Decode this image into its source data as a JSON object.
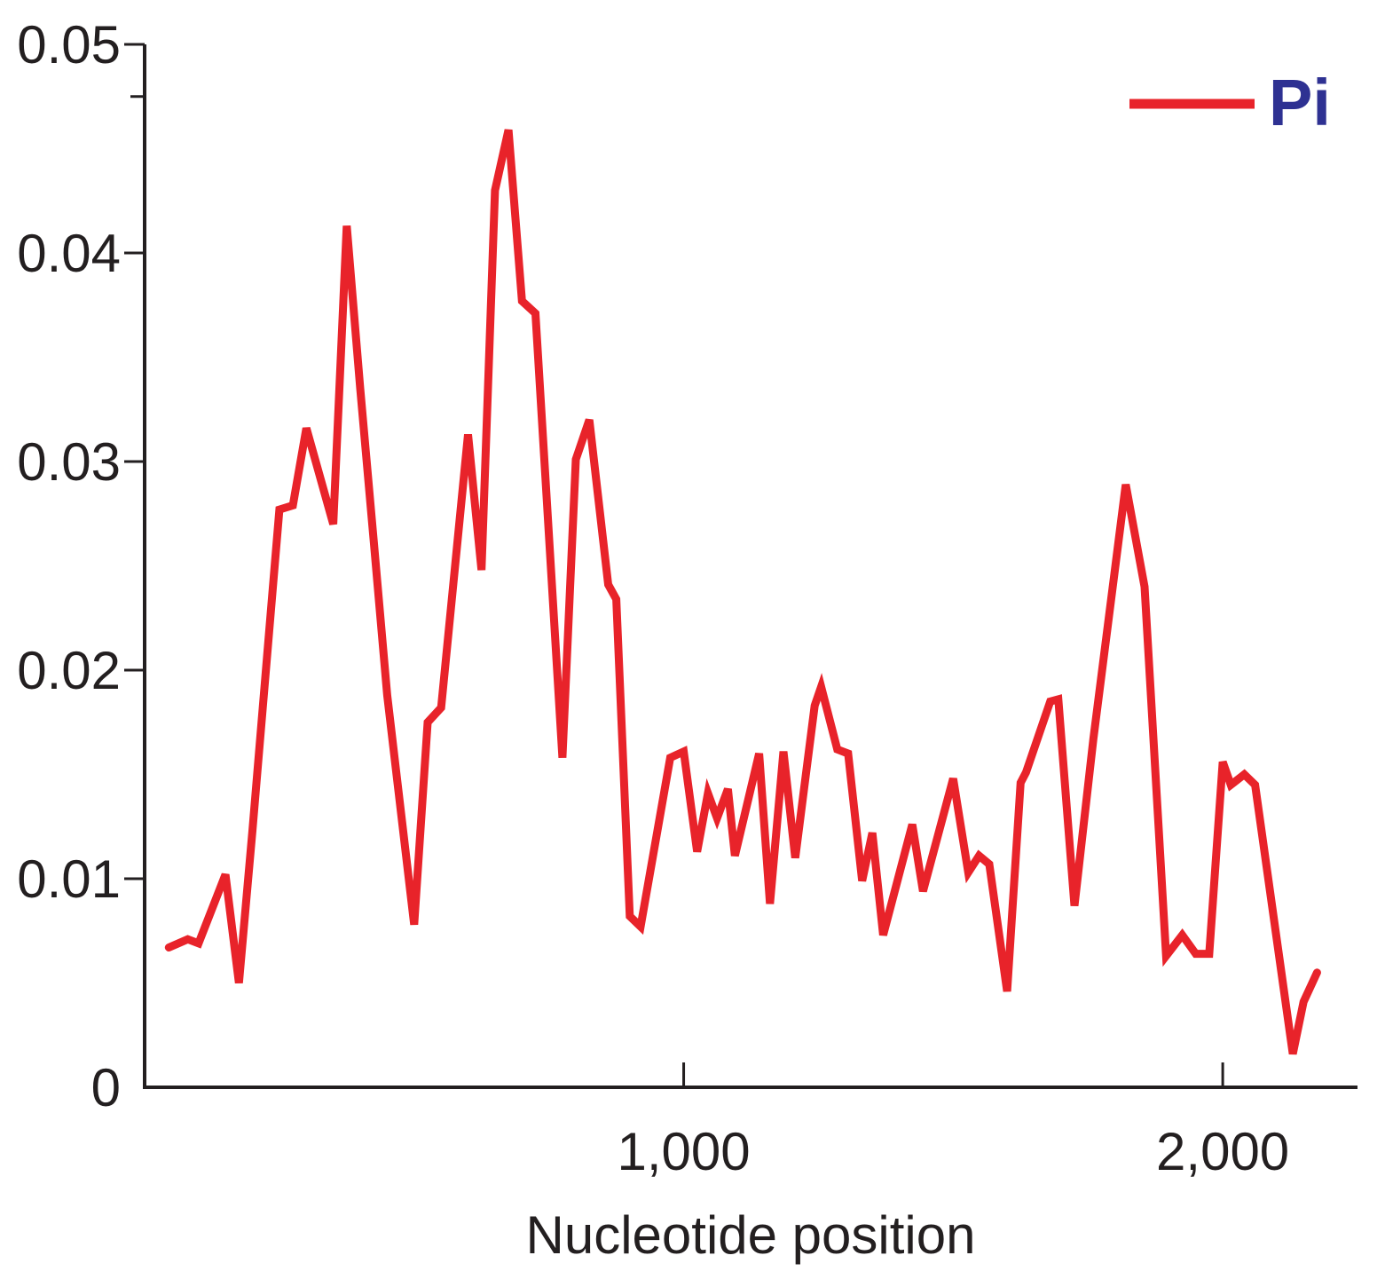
{
  "figure": {
    "background_color": "#ffffff",
    "axis_color": "#231f20",
    "text_color": "#231f20"
  },
  "chart_data": {
    "type": "line",
    "title": "",
    "xlabel": "Nucleotide position",
    "ylabel": "",
    "xlim": [
      0,
      2250
    ],
    "ylim": [
      0,
      0.05
    ],
    "grid": false,
    "x_ticks": [
      {
        "value": 1000,
        "label": "1,000"
      },
      {
        "value": 2000,
        "label": "2,000"
      }
    ],
    "y_ticks": [
      {
        "value": 0,
        "label": "0"
      },
      {
        "value": 0.01,
        "label": "0.01"
      },
      {
        "value": 0.02,
        "label": "0.02"
      },
      {
        "value": 0.03,
        "label": "0.03"
      },
      {
        "value": 0.04,
        "label": "0.04"
      },
      {
        "value": 0.05,
        "label": "0.05"
      }
    ],
    "y_minor_ticks": [
      0.0475
    ],
    "legend": {
      "position": "top-right",
      "label": "Pi",
      "label_color": "#2e3192",
      "line_color": "#e8232a"
    },
    "series": [
      {
        "name": "Pi",
        "color": "#e8232a",
        "x": [
          45,
          80,
          100,
          150,
          175,
          200,
          250,
          275,
          300,
          350,
          375,
          400,
          425,
          450,
          500,
          525,
          550,
          600,
          625,
          650,
          675,
          700,
          725,
          775,
          800,
          825,
          860,
          875,
          900,
          920,
          975,
          1000,
          1025,
          1045,
          1062,
          1082,
          1095,
          1140,
          1160,
          1185,
          1207,
          1243,
          1255,
          1285,
          1305,
          1331,
          1350,
          1370,
          1424,
          1444,
          1500,
          1528,
          1548,
          1567,
          1600,
          1625,
          1635,
          1680,
          1695,
          1725,
          1760,
          1820,
          1855,
          1895,
          1925,
          1950,
          1975,
          2000,
          2015,
          2040,
          2060,
          2130,
          2150,
          2175
        ],
        "y": [
          0.0067,
          0.0071,
          0.0069,
          0.0102,
          0.005,
          0.0123,
          0.0277,
          0.0279,
          0.0316,
          0.027,
          0.0413,
          0.0335,
          0.0262,
          0.0188,
          0.0078,
          0.0175,
          0.0182,
          0.0313,
          0.0248,
          0.043,
          0.0459,
          0.0377,
          0.0371,
          0.0158,
          0.0301,
          0.032,
          0.0241,
          0.0234,
          0.0082,
          0.0077,
          0.0158,
          0.0161,
          0.0113,
          0.0141,
          0.0129,
          0.0143,
          0.0111,
          0.016,
          0.0088,
          0.0161,
          0.011,
          0.0183,
          0.0192,
          0.0162,
          0.016,
          0.0099,
          0.0122,
          0.0073,
          0.0126,
          0.0094,
          0.0148,
          0.0103,
          0.0111,
          0.0107,
          0.0046,
          0.0146,
          0.0151,
          0.0185,
          0.0186,
          0.0087,
          0.0167,
          0.0289,
          0.024,
          0.0063,
          0.0073,
          0.0064,
          0.0064,
          0.0156,
          0.0145,
          0.015,
          0.0145,
          0.0016,
          0.0041,
          0.0055
        ]
      }
    ]
  }
}
